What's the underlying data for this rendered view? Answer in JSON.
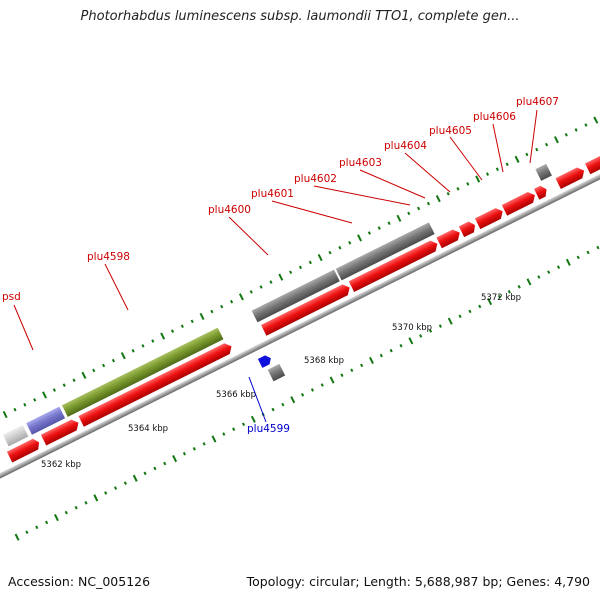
{
  "title": "Photorhabdus luminescens subsp. laumondii TTO1, complete gen...",
  "footer": {
    "accession": "Accession: NC_005126",
    "topology": "Topology: circular; Length: 5,688,987 bp; Genes: 4,790"
  },
  "colors": {
    "forward_gene": "#ee1111",
    "reverse_gene": "#777777",
    "tick": "#117711",
    "label_red": "#cc0000",
    "label_blue": "#0000cc",
    "backbone": "#999999"
  },
  "scale_labels": [
    "5362 kbp",
    "5364 kbp",
    "5366 kbp",
    "5368 kbp",
    "5370 kbp",
    "5372 kbp"
  ],
  "gene_labels": [
    {
      "name": "psd",
      "color": "red"
    },
    {
      "name": "plu4598",
      "color": "red"
    },
    {
      "name": "plu4599",
      "color": "blue"
    },
    {
      "name": "plu4600",
      "color": "red"
    },
    {
      "name": "plu4601",
      "color": "red"
    },
    {
      "name": "plu4602",
      "color": "red"
    },
    {
      "name": "plu4603",
      "color": "red"
    },
    {
      "name": "plu4604",
      "color": "red"
    },
    {
      "name": "plu4605",
      "color": "red"
    },
    {
      "name": "plu4606",
      "color": "red"
    },
    {
      "name": "plu4607",
      "color": "red"
    }
  ]
}
